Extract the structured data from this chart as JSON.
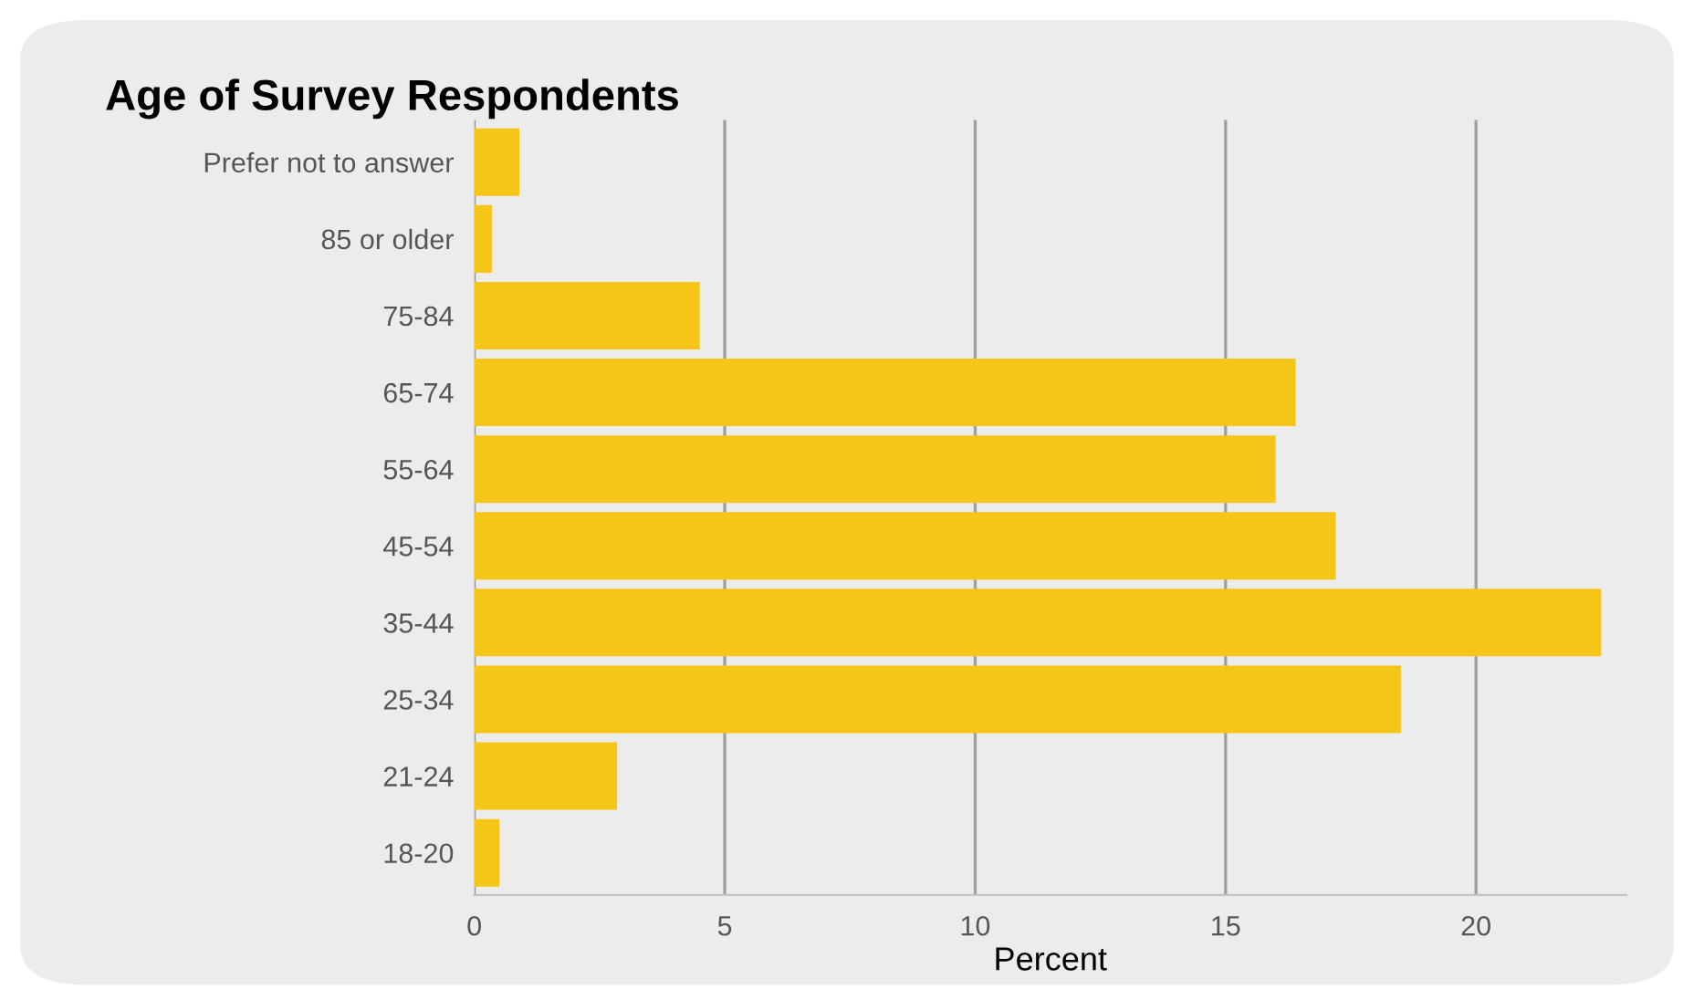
{
  "chart_data": {
    "type": "bar",
    "orientation": "horizontal",
    "title": "Age of Survey Respondents",
    "xlabel": "Percent",
    "categories": [
      "Prefer not to answer",
      "85 or older",
      "75-84",
      "65-74",
      "55-64",
      "45-54",
      "35-44",
      "25-34",
      "21-24",
      "18-20"
    ],
    "series": [
      {
        "color": "#f5c518",
        "values": [
          0.9,
          0.35,
          4.5,
          16.4,
          16.0,
          17.2,
          22.5,
          18.5,
          2.85,
          0.5
        ]
      }
    ],
    "xlim": [
      0,
      23
    ],
    "xticks": [
      0,
      5,
      10,
      15,
      20
    ],
    "grid": "x",
    "legend": false
  }
}
